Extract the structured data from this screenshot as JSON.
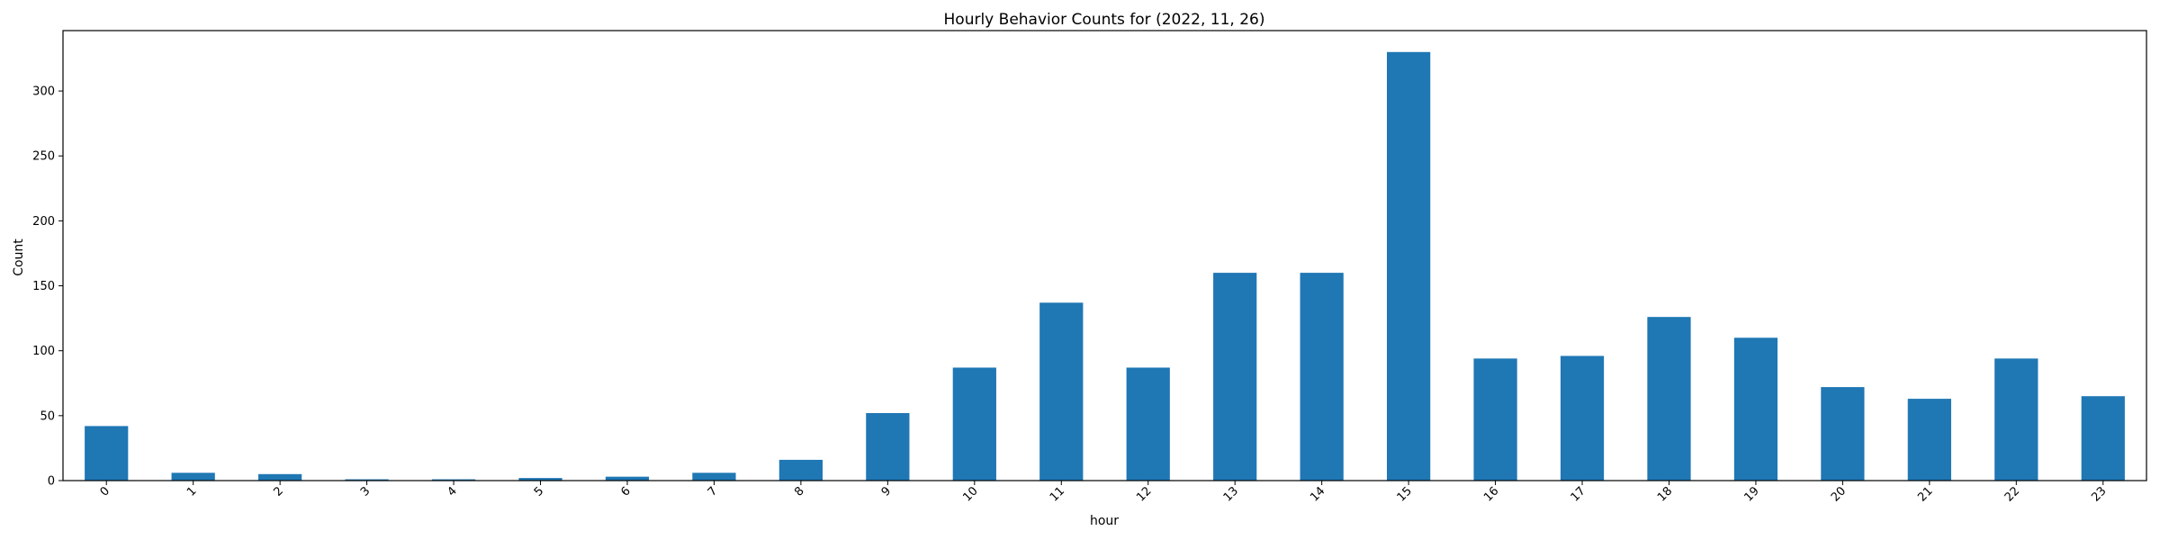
{
  "chart_data": {
    "type": "bar",
    "title": "Hourly Behavior Counts for (2022, 11, 26)",
    "xlabel": "hour",
    "ylabel": "Count",
    "categories": [
      "0",
      "1",
      "2",
      "3",
      "4",
      "5",
      "6",
      "7",
      "8",
      "9",
      "10",
      "11",
      "12",
      "13",
      "14",
      "15",
      "16",
      "17",
      "18",
      "19",
      "20",
      "21",
      "22",
      "23"
    ],
    "values": [
      42,
      6,
      5,
      1,
      1,
      2,
      3,
      6,
      16,
      52,
      87,
      137,
      87,
      160,
      160,
      330,
      94,
      96,
      126,
      110,
      72,
      63,
      94,
      65
    ],
    "yticks": [
      0,
      50,
      100,
      150,
      200,
      250,
      300
    ],
    "ylim": [
      0,
      346.5
    ],
    "grid": false,
    "legend": "none",
    "colors": {
      "bar": "#1f77b4",
      "axes": "#000000"
    }
  }
}
